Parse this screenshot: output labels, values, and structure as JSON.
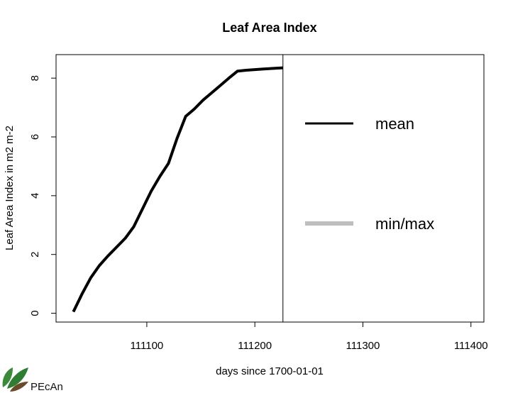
{
  "chart_data": {
    "type": "line",
    "title": "Leaf Area Index",
    "xlabel": "days since 1700-01-01",
    "ylabel": "Leaf Area Index in m2 m-2",
    "xlim": [
      111016,
      111412
    ],
    "ylim": [
      -0.3,
      8.8
    ],
    "x_ticks": [
      111100,
      111200,
      111300,
      111400
    ],
    "y_ticks": [
      0,
      2,
      4,
      6,
      8
    ],
    "vertical_line_x": 111226,
    "legend": {
      "placement": "right",
      "entries": [
        {
          "label": "mean",
          "color": "#000000"
        },
        {
          "label": "min/max",
          "color": "#bebebe"
        }
      ]
    },
    "series": [
      {
        "name": "mean",
        "color": "#000000",
        "x": [
          111032,
          111040,
          111048,
          111056,
          111064,
          111072,
          111080,
          111088,
          111096,
          111104,
          111112,
          111120,
          111128,
          111136,
          111144,
          111152,
          111160,
          111168,
          111176,
          111184,
          111192,
          111200,
          111208,
          111216,
          111226
        ],
        "y": [
          0.05,
          0.65,
          1.2,
          1.62,
          1.95,
          2.25,
          2.55,
          2.95,
          3.55,
          4.15,
          4.65,
          5.1,
          5.95,
          6.7,
          6.95,
          7.25,
          7.5,
          7.75,
          8.0,
          8.24,
          8.27,
          8.29,
          8.31,
          8.33,
          8.35
        ]
      }
    ]
  },
  "branding": {
    "logo_text": "PEcAn"
  }
}
